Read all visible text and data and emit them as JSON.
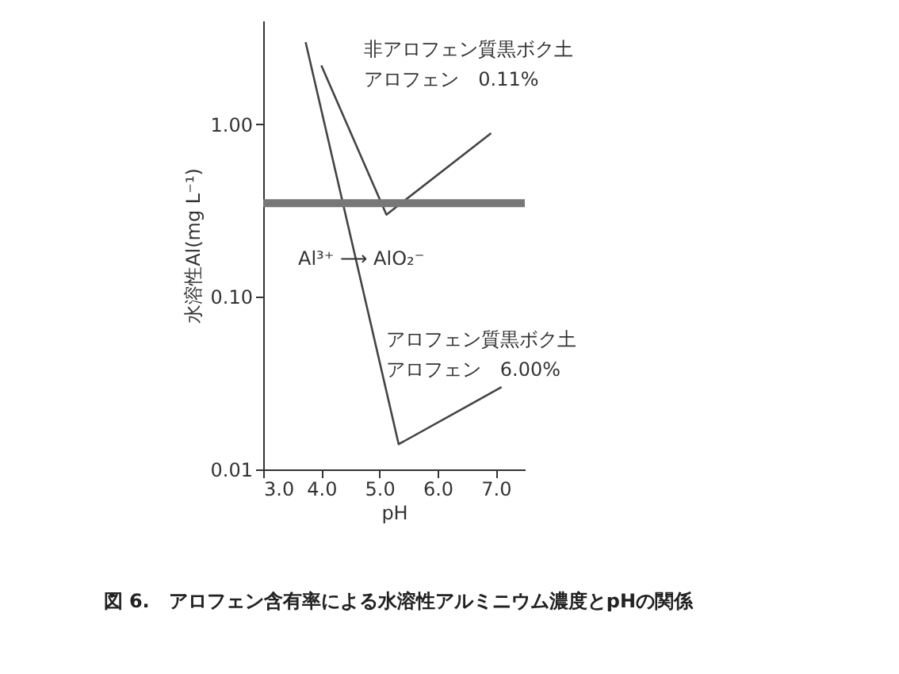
{
  "chart_data": {
    "type": "line",
    "title": "図 6.　アロフェン含有率による水溶性アルミニウム濃度とpHの関係",
    "xlabel": "pH",
    "ylabel": "水溶性Al(mg L⁻¹)",
    "log": "y",
    "grid": false,
    "legend": false,
    "marker": "none",
    "line_style": "solid",
    "xlim": [
      3.0,
      7.5
    ],
    "xticks": [
      {
        "value": 3,
        "label": "3.0"
      },
      {
        "value": 4,
        "label": "4.0"
      },
      {
        "value": 5,
        "label": "5.0"
      },
      {
        "value": 6,
        "label": "6.0"
      },
      {
        "value": 7,
        "label": "7.0"
      }
    ],
    "ylim": [
      0.01,
      4
    ],
    "yticks": [
      {
        "value": 0.01,
        "label": "0.01"
      },
      {
        "value": 0.1,
        "label": "0.10"
      },
      {
        "value": 1,
        "label": "1.00"
      }
    ],
    "series": [
      {
        "name": "非アロフェン質黒ボク土アロフェン　0.11%",
        "color": "#444444",
        "x": [
          4.0,
          5.12,
          6.92
        ],
        "values": [
          2.2,
          0.3,
          0.89
        ]
      },
      {
        "name": "アロフェン質黒ボク土アロフェン　6.00%",
        "color": "#444444",
        "x": [
          3.73,
          5.33,
          7.1
        ],
        "values": [
          3.0,
          0.014,
          0.03
        ]
      }
    ],
    "ref_lines": [
      {
        "axis": "y",
        "value": 0.35,
        "color": "#777777"
      }
    ],
    "annotations": [
      "Al³⁺ ⟶ AlO₂⁻"
    ]
  }
}
